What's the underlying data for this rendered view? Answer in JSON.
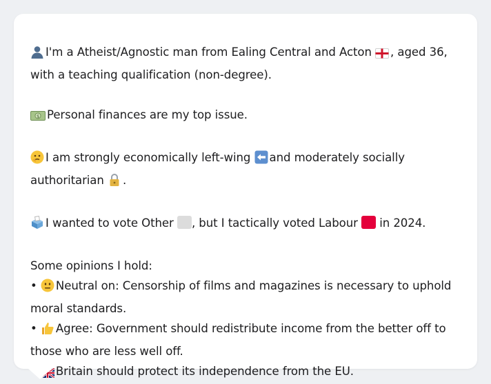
{
  "profile": {
    "intro_a": "I'm a Atheist/Agnostic man from Ealing Central and Acton",
    "intro_b": ", aged 36,",
    "intro_c": "with a teaching qualification (non-degree).",
    "finances": "Personal finances are my top issue.",
    "ideology_a": "I am strongly economically left-wing",
    "ideology_b": "and moderately socially",
    "ideology_c": "authoritarian",
    "ideology_d": ".",
    "vote_a": "I wanted to vote Other",
    "vote_b": ", but I tactically voted Labour",
    "vote_c": "in 2024.",
    "opinions_heading": "Some opinions I hold:",
    "opinion1_a": "Neutral on: Censorship of films and magazines is necessary to uphold",
    "opinion1_b": "moral standards.",
    "opinion2_a": "Agree: Government should redistribute income from the better off to",
    "opinion2_b": "those who are less well off.",
    "opinion3": "Britain should protect its independence from the EU.",
    "bullet": "•"
  },
  "colors": {
    "other_party": "#dcdcdc",
    "labour": "#e4003b"
  },
  "icons": [
    "person-icon",
    "england-flag-icon",
    "money-icon",
    "thinking-face-icon",
    "left-arrow-icon",
    "lock-icon",
    "ballot-box-icon",
    "neutral-face-icon",
    "thumbs-up-icon",
    "uk-flag-icon"
  ]
}
